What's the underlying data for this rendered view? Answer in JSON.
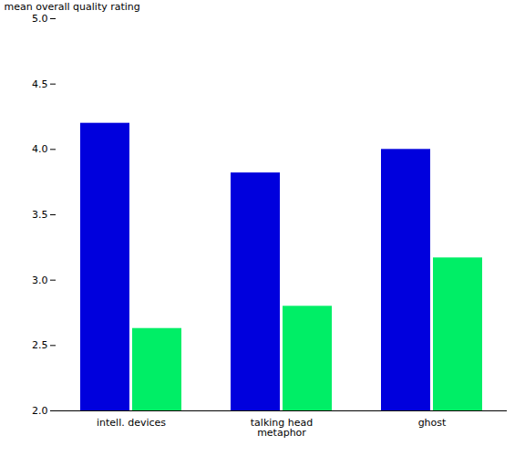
{
  "chart_data": {
    "type": "bar",
    "ylabel": "mean overall quality rating",
    "categories": [
      "intell. devices",
      "talking head\nmetaphor",
      "ghost"
    ],
    "series": [
      {
        "color": "#0000dd",
        "values": [
          4.2,
          3.82,
          4.0
        ]
      },
      {
        "color": "#00ee66",
        "values": [
          2.63,
          2.8,
          3.17
        ]
      }
    ],
    "ylim": [
      2,
      5
    ],
    "yticks": [
      {
        "value": 2,
        "label": "2.0"
      },
      {
        "value": 2.5,
        "label": "2.5"
      },
      {
        "value": 3,
        "label": "3.0"
      },
      {
        "value": 3.5,
        "label": "3.5"
      },
      {
        "value": 4,
        "label": "4.0"
      },
      {
        "value": 4.5,
        "label": "4.5"
      },
      {
        "value": 5,
        "label": "5.0"
      }
    ],
    "grid": false
  }
}
